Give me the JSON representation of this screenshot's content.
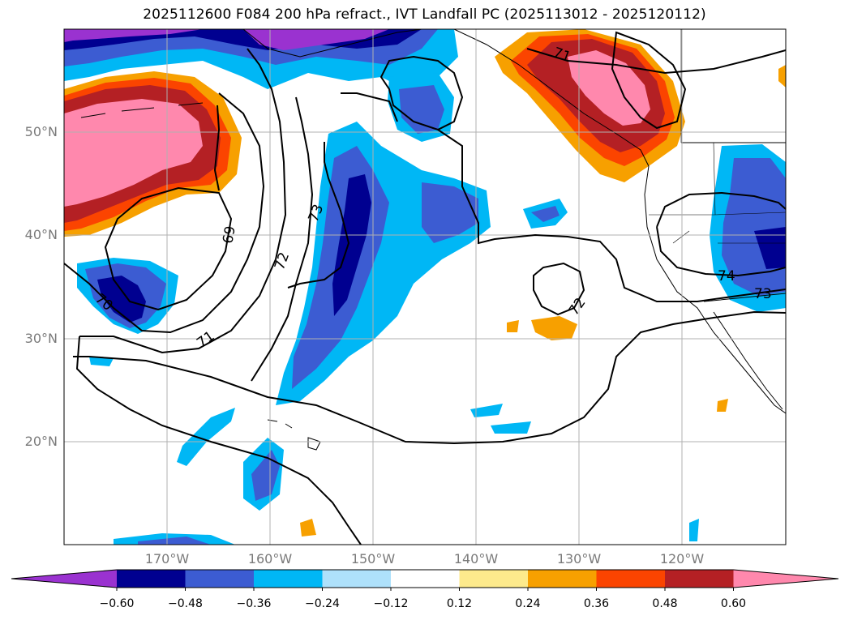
{
  "title": "2025112600 F084 200 hPa refract., IVT Landfall PC (2025113012 - 2025120112)",
  "lat_labels": [
    "50°N",
    "40°N",
    "30°N",
    "20°N"
  ],
  "lon_labels": [
    "170°W",
    "160°W",
    "150°W",
    "140°W",
    "130°W",
    "120°W"
  ],
  "contour_labels": [
    "69",
    "70",
    "71",
    "72",
    "73",
    "72",
    "71",
    "74",
    "73"
  ],
  "colorbar": {
    "tick_labels": [
      "−0.60",
      "−0.48",
      "−0.36",
      "−0.24",
      "−0.12",
      "0.12",
      "0.24",
      "0.36",
      "0.48",
      "0.60"
    ],
    "colors": [
      "#9a32d0",
      "#000090",
      "#3c5cd2",
      "#00b7f5",
      "#aee1fb",
      "#ffffff",
      "#fdea8c",
      "#f7a000",
      "#fb4400",
      "#b42024",
      "#ff88ad"
    ]
  }
}
